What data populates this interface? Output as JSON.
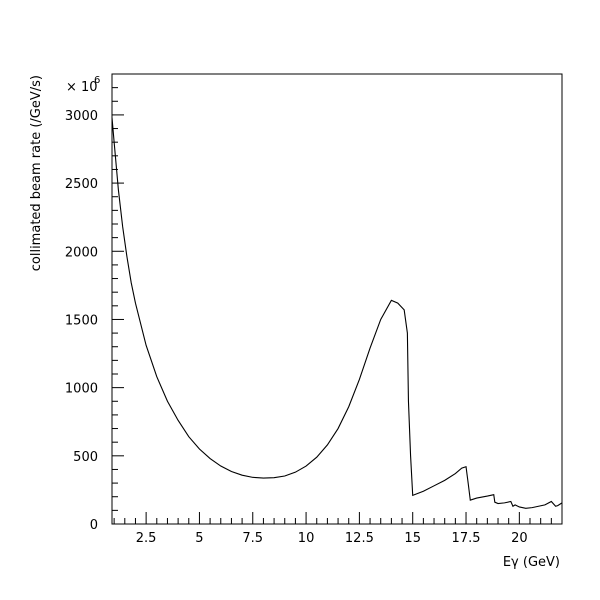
{
  "chart_data": {
    "type": "line",
    "xlabel": "Eγ (GeV)",
    "ylabel": "collimated beam rate (/GeV/s)",
    "y_multiplier": "× 10",
    "y_multiplier_exp": "6",
    "xlim": [
      0.9,
      22.0
    ],
    "ylim": [
      0,
      3300
    ],
    "x_ticks": [
      2.5,
      5,
      7.5,
      10,
      12.5,
      15,
      17.5,
      20
    ],
    "x_tick_labels": [
      "2.5",
      "5",
      "7.5",
      "10",
      "12.5",
      "15",
      "17.5",
      "20"
    ],
    "y_ticks": [
      0,
      500,
      1000,
      1500,
      2000,
      2500,
      3000
    ],
    "y_tick_labels": [
      "0",
      "500",
      "1000",
      "1500",
      "2000",
      "2500",
      "3000"
    ],
    "grid": false,
    "series": [
      {
        "x": [
          0.9,
          1.0,
          1.2,
          1.4,
          1.6,
          1.8,
          2.0,
          2.5,
          3.0,
          3.5,
          4.0,
          4.5,
          5.0,
          5.5,
          6.0,
          6.5,
          7.0,
          7.5,
          8.0,
          8.5,
          9.0,
          9.5,
          10.0,
          10.5,
          11.0,
          11.5,
          12.0,
          12.5,
          13.0,
          13.5,
          14.0,
          14.3,
          14.6,
          14.75,
          14.8,
          14.9,
          15.0,
          15.5,
          16.0,
          16.5,
          17.0,
          17.3,
          17.5,
          17.6,
          17.7,
          17.8,
          18.0,
          18.5,
          18.8,
          18.85,
          19.0,
          19.3,
          19.6,
          19.7,
          19.8,
          20.0,
          20.3,
          20.6,
          20.9,
          21.2,
          21.5,
          21.7,
          21.8,
          22.0
        ],
        "values": [
          2980,
          2800,
          2450,
          2180,
          1960,
          1770,
          1620,
          1310,
          1080,
          900,
          760,
          640,
          550,
          480,
          425,
          385,
          358,
          342,
          337,
          340,
          352,
          380,
          425,
          490,
          580,
          700,
          860,
          1060,
          1290,
          1500,
          1640,
          1620,
          1570,
          1400,
          900,
          500,
          210,
          240,
          280,
          320,
          370,
          410,
          420,
          300,
          175,
          180,
          190,
          205,
          215,
          160,
          150,
          155,
          165,
          130,
          140,
          125,
          115,
          120,
          130,
          140,
          165,
          130,
          135,
          155
        ]
      }
    ]
  }
}
